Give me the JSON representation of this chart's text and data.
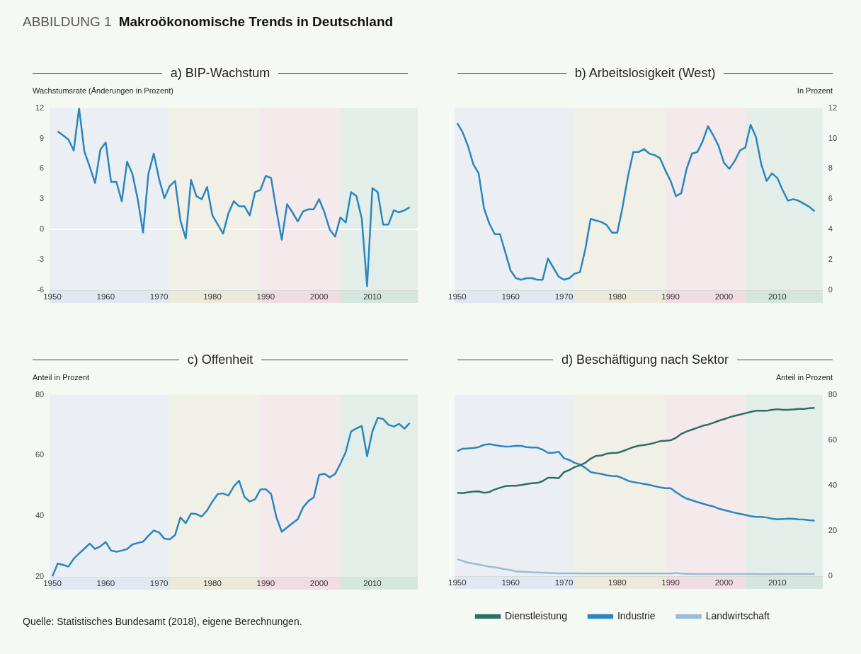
{
  "chart_data": [
    {
      "type": "line",
      "title": "a) BIP-Wachstum",
      "ylabel": "Wachstumsrate (Änderungen in Prozent)",
      "annotations": [
        "ABBILDUNG 1",
        "Makroökonomische Trends in Deutschland"
      ],
      "x": [
        1951,
        1952,
        1953,
        1954,
        1955,
        1956,
        1957,
        1958,
        1959,
        1960,
        1961,
        1962,
        1963,
        1964,
        1965,
        1966,
        1967,
        1968,
        1969,
        1970,
        1971,
        1972,
        1973,
        1974,
        1975,
        1976,
        1977,
        1978,
        1979,
        1980,
        1981,
        1982,
        1983,
        1984,
        1985,
        1986,
        1987,
        1988,
        1989,
        1990,
        1991,
        1992,
        1993,
        1994,
        1995,
        1996,
        1997,
        1998,
        1999,
        2000,
        2001,
        2002,
        2003,
        2004,
        2005,
        2006,
        2007,
        2008,
        2009,
        2010,
        2011,
        2012,
        2013,
        2014,
        2015,
        2016,
        2017
      ],
      "series": [
        {
          "color": "#2a86bf",
          "values": [
            9.7,
            9.3,
            8.9,
            7.8,
            12.0,
            7.7,
            6.2,
            4.6,
            7.9,
            8.6,
            4.7,
            4.7,
            2.8,
            6.7,
            5.5,
            3.0,
            -0.3,
            5.5,
            7.5,
            5.0,
            3.1,
            4.3,
            4.8,
            0.9,
            -0.9,
            4.9,
            3.3,
            3.0,
            4.2,
            1.4,
            0.5,
            -0.4,
            1.6,
            2.8,
            2.3,
            2.3,
            1.4,
            3.7,
            3.9,
            5.3,
            5.1,
            1.9,
            -1.0,
            2.5,
            1.7,
            0.8,
            1.8,
            2.0,
            2.0,
            3.0,
            1.7,
            0.0,
            -0.7,
            1.2,
            0.7,
            3.7,
            3.3,
            1.1,
            -5.6,
            4.1,
            3.7,
            0.5,
            0.5,
            1.9,
            1.7,
            1.9,
            2.2
          ]
        }
      ],
      "xlim": [
        1949.5,
        2018.5
      ],
      "xticks": [
        1950,
        1960,
        1970,
        1980,
        1990,
        2000,
        2010
      ],
      "ylim": [
        -6,
        12
      ],
      "yticks": [
        -6,
        -3,
        0,
        3,
        6,
        9,
        12
      ],
      "ref_lines": [
        {
          "axis": "y",
          "value": 0,
          "color": "#ffffff"
        }
      ],
      "bands": [
        {
          "axis": "x",
          "from": 1949.5,
          "to": 1972,
          "color": "#e1e8f3"
        },
        {
          "axis": "x",
          "from": 1972,
          "to": 1989,
          "color": "#ebeadb"
        },
        {
          "axis": "x",
          "from": 1989,
          "to": 2004,
          "color": "#f2dce3"
        },
        {
          "axis": "x",
          "from": 2004,
          "to": 2018.5,
          "color": "#d5e6df"
        }
      ]
    },
    {
      "type": "line",
      "title": "b) Arbeitslosigkeit (West)",
      "y2label": "In Prozent",
      "x": [
        1950,
        1951,
        1952,
        1953,
        1954,
        1955,
        1956,
        1957,
        1958,
        1959,
        1960,
        1961,
        1962,
        1963,
        1964,
        1965,
        1966,
        1967,
        1968,
        1969,
        1970,
        1971,
        1972,
        1973,
        1974,
        1975,
        1976,
        1977,
        1978,
        1979,
        1980,
        1981,
        1982,
        1983,
        1984,
        1985,
        1986,
        1987,
        1988,
        1989,
        1990,
        1991,
        1992,
        1993,
        1994,
        1995,
        1996,
        1997,
        1998,
        1999,
        2000,
        2001,
        2002,
        2003,
        2004,
        2005,
        2006,
        2007,
        2008,
        2009,
        2010,
        2011,
        2012,
        2013,
        2014,
        2015,
        2016,
        2017
      ],
      "series": [
        {
          "color": "#2a86bf",
          "axis": "y2",
          "values": [
            11.0,
            10.4,
            9.5,
            8.3,
            7.7,
            5.4,
            4.4,
            3.7,
            3.7,
            2.5,
            1.3,
            0.8,
            0.7,
            0.8,
            0.8,
            0.7,
            0.7,
            2.1,
            1.5,
            0.9,
            0.7,
            0.8,
            1.1,
            1.2,
            2.7,
            4.7,
            4.6,
            4.5,
            4.3,
            3.8,
            3.8,
            5.5,
            7.5,
            9.1,
            9.1,
            9.3,
            9.0,
            8.9,
            8.7,
            7.9,
            7.2,
            6.2,
            6.4,
            8.0,
            9.0,
            9.1,
            9.8,
            10.8,
            10.2,
            9.5,
            8.4,
            8.0,
            8.5,
            9.2,
            9.4,
            10.9,
            10.1,
            8.3,
            7.2,
            7.7,
            7.4,
            6.6,
            5.9,
            6.0,
            5.9,
            5.7,
            5.5,
            5.2
          ]
        }
      ],
      "xlim": [
        1949.5,
        2018.5
      ],
      "xticks": [
        1950,
        1960,
        1970,
        1980,
        1990,
        2000,
        2010
      ],
      "y2lim": [
        0,
        12
      ],
      "y2ticks": [
        0,
        2,
        4,
        6,
        8,
        10,
        12
      ],
      "bands": [
        {
          "axis": "x",
          "from": 1949.5,
          "to": 1972,
          "color": "#e1e8f3"
        },
        {
          "axis": "x",
          "from": 1972,
          "to": 1989,
          "color": "#ebeadb"
        },
        {
          "axis": "x",
          "from": 1989,
          "to": 2004,
          "color": "#f2dce3"
        },
        {
          "axis": "x",
          "from": 2004,
          "to": 2018.5,
          "color": "#d5e6df"
        }
      ]
    },
    {
      "type": "line",
      "title": "c) Offenheit",
      "ylabel": "Anteil in Prozent",
      "x": [
        1950,
        1951,
        1952,
        1953,
        1954,
        1955,
        1956,
        1957,
        1958,
        1959,
        1960,
        1961,
        1962,
        1963,
        1964,
        1965,
        1966,
        1967,
        1968,
        1969,
        1970,
        1971,
        1972,
        1973,
        1974,
        1975,
        1976,
        1977,
        1978,
        1979,
        1980,
        1981,
        1982,
        1983,
        1984,
        1985,
        1986,
        1987,
        1988,
        1989,
        1990,
        1991,
        1992,
        1993,
        1994,
        1995,
        1996,
        1997,
        1998,
        1999,
        2000,
        2001,
        2002,
        2003,
        2004,
        2005,
        2006,
        2007,
        2008,
        2009,
        2010,
        2011,
        2012,
        2013,
        2014,
        2015,
        2016,
        2017
      ],
      "series": [
        {
          "color": "#2a86bf",
          "values": [
            20.2,
            24.4,
            24.0,
            23.4,
            26.0,
            27.7,
            29.3,
            31.0,
            29.2,
            30.1,
            31.5,
            28.7,
            28.3,
            28.7,
            29.2,
            30.7,
            31.2,
            31.6,
            33.6,
            35.3,
            34.7,
            32.6,
            32.4,
            33.8,
            39.6,
            37.7,
            40.9,
            40.7,
            39.9,
            41.9,
            44.8,
            47.3,
            47.5,
            46.8,
            49.8,
            51.7,
            46.4,
            44.8,
            45.6,
            48.8,
            48.9,
            47.3,
            39.6,
            34.9,
            36.3,
            37.7,
            39.0,
            42.9,
            45.0,
            46.2,
            53.6,
            54.0,
            52.8,
            53.9,
            57.3,
            61.1,
            67.9,
            68.9,
            69.7,
            59.7,
            67.9,
            72.4,
            72.0,
            70.1,
            69.5,
            70.4,
            68.8,
            70.7
          ]
        }
      ],
      "xlim": [
        1949.5,
        2018.5
      ],
      "xticks": [
        1950,
        1960,
        1970,
        1980,
        1990,
        2000,
        2010
      ],
      "ylim": [
        20,
        80
      ],
      "yticks": [
        20,
        40,
        60,
        80
      ],
      "bands": [
        {
          "axis": "x",
          "from": 1949.5,
          "to": 1972,
          "color": "#e1e8f3"
        },
        {
          "axis": "x",
          "from": 1972,
          "to": 1989,
          "color": "#ebeadb"
        },
        {
          "axis": "x",
          "from": 1989,
          "to": 2004,
          "color": "#f2dce3"
        },
        {
          "axis": "x",
          "from": 2004,
          "to": 2018.5,
          "color": "#d5e6df"
        }
      ]
    },
    {
      "type": "line",
      "title": "d) Beschäftigung nach Sektor",
      "y2label": "Anteil in Prozent",
      "legend": "bottom",
      "annotations": [
        "Quelle: Statistisches Bundesamt (2018), eigene Berechnungen."
      ],
      "x": [
        1950,
        1951,
        1952,
        1953,
        1954,
        1955,
        1956,
        1957,
        1958,
        1959,
        1960,
        1961,
        1962,
        1963,
        1964,
        1965,
        1966,
        1967,
        1968,
        1969,
        1970,
        1971,
        1972,
        1973,
        1974,
        1975,
        1976,
        1977,
        1978,
        1979,
        1980,
        1981,
        1982,
        1983,
        1984,
        1985,
        1986,
        1987,
        1988,
        1989,
        1990,
        1991,
        1992,
        1993,
        1994,
        1995,
        1996,
        1997,
        1998,
        1999,
        2000,
        2001,
        2002,
        2003,
        2004,
        2005,
        2006,
        2007,
        2008,
        2009,
        2010,
        2011,
        2012,
        2013,
        2014,
        2015,
        2016,
        2017
      ],
      "series": [
        {
          "name": "Dienstleistung",
          "color": "#2e6e62",
          "axis": "y2",
          "values": [
            36.8,
            36.6,
            37.0,
            37.3,
            37.4,
            36.8,
            37.1,
            38.2,
            39.0,
            39.7,
            39.9,
            39.9,
            40.2,
            40.7,
            41.0,
            41.1,
            41.9,
            43.4,
            43.4,
            43.2,
            45.9,
            46.8,
            48.1,
            48.9,
            50.0,
            51.8,
            53.0,
            53.2,
            54.0,
            54.3,
            54.4,
            55.1,
            56.0,
            56.9,
            57.5,
            57.8,
            58.2,
            58.8,
            59.5,
            59.7,
            59.9,
            61.0,
            62.7,
            63.8,
            64.6,
            65.4,
            66.3,
            66.8,
            67.6,
            68.5,
            69.2,
            70.0,
            70.7,
            71.2,
            71.8,
            72.4,
            72.9,
            72.9,
            72.9,
            73.3,
            73.6,
            73.3,
            73.3,
            73.5,
            73.7,
            73.7,
            74.0,
            74.2
          ]
        },
        {
          "name": "Industrie",
          "color": "#2a86bf",
          "axis": "y2",
          "values": [
            55.1,
            56.2,
            56.3,
            56.5,
            56.9,
            57.9,
            58.2,
            57.8,
            57.4,
            57.1,
            57.2,
            57.5,
            57.4,
            56.9,
            56.7,
            56.7,
            55.8,
            54.4,
            54.4,
            54.9,
            52.0,
            51.2,
            50.0,
            49.2,
            47.8,
            45.9,
            45.4,
            45.1,
            44.5,
            44.2,
            44.1,
            43.2,
            42.1,
            41.5,
            41.1,
            40.7,
            40.3,
            39.7,
            39.2,
            38.8,
            38.8,
            37.1,
            35.5,
            34.2,
            33.5,
            32.7,
            32.0,
            31.3,
            30.8,
            29.8,
            29.2,
            28.6,
            28.0,
            27.5,
            27.0,
            26.5,
            26.2,
            26.2,
            25.9,
            25.4,
            25.1,
            25.2,
            25.4,
            25.3,
            25.1,
            25.0,
            24.7,
            24.5
          ]
        },
        {
          "name": "Landwirtschaft",
          "color": "#9bbad9",
          "axis": "y2",
          "values": [
            7.5,
            6.8,
            6.0,
            5.6,
            5.2,
            4.7,
            4.2,
            4.0,
            3.6,
            3.1,
            2.7,
            2.2,
            2.0,
            1.9,
            1.8,
            1.7,
            1.6,
            1.5,
            1.4,
            1.3,
            1.3,
            1.3,
            1.3,
            1.2,
            1.2,
            1.2,
            1.2,
            1.2,
            1.2,
            1.2,
            1.2,
            1.2,
            1.2,
            1.2,
            1.2,
            1.2,
            1.2,
            1.2,
            1.2,
            1.2,
            1.2,
            1.5,
            1.2,
            1.1,
            1.1,
            1.0,
            1.0,
            1.0,
            1.0,
            1.0,
            1.0,
            1.0,
            1.0,
            1.0,
            1.0,
            1.0,
            1.0,
            0.9,
            0.9,
            0.9,
            1.0,
            1.0,
            1.0,
            1.0,
            1.0,
            1.0,
            1.0,
            1.0
          ]
        }
      ],
      "xlim": [
        1949.5,
        2018.5
      ],
      "xticks": [
        1950,
        1960,
        1970,
        1980,
        1990,
        2000,
        2010
      ],
      "y2lim": [
        0,
        80
      ],
      "y2ticks": [
        0,
        20,
        40,
        60,
        80
      ],
      "bands": [
        {
          "axis": "x",
          "from": 1949.5,
          "to": 1972,
          "color": "#e1e8f3"
        },
        {
          "axis": "x",
          "from": 1972,
          "to": 1989,
          "color": "#ebeadb"
        },
        {
          "axis": "x",
          "from": 1989,
          "to": 2004,
          "color": "#f2dce3"
        },
        {
          "axis": "x",
          "from": 2004,
          "to": 2018.5,
          "color": "#d5e6df"
        }
      ]
    }
  ]
}
